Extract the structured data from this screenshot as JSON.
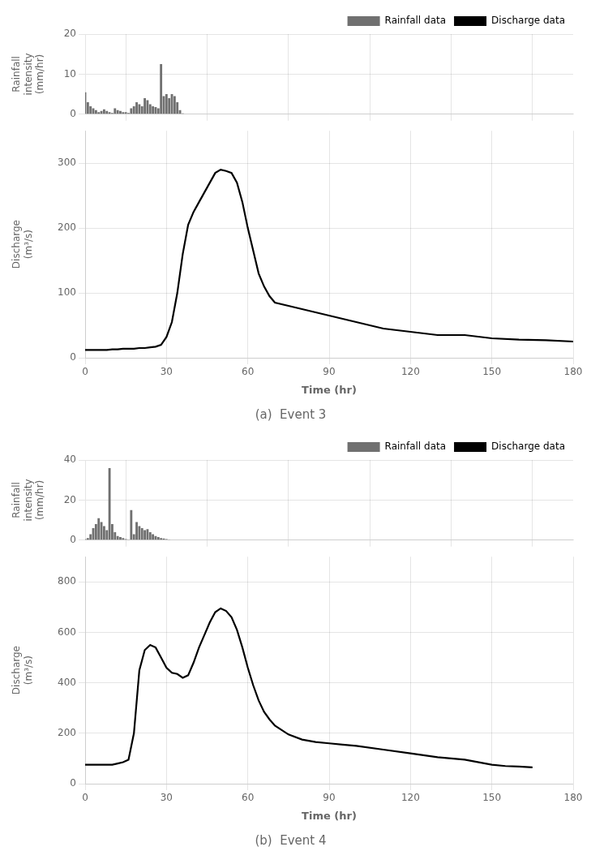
{
  "chart_data": [
    {
      "type": "line",
      "title": "(a)  Event 3",
      "xlabel": "Time (hr)",
      "ylabel": "Discharge\n(m³/s)",
      "y2label": "Rainfall\nintensity\n(mm/hr)",
      "xlim": [
        0,
        180
      ],
      "xticks": [
        0,
        30,
        60,
        90,
        120,
        150,
        180
      ],
      "ylim": [
        0,
        350
      ],
      "yticks": [
        0,
        100,
        200,
        300
      ],
      "y2lim": [
        0,
        20
      ],
      "y2ticks": [
        0,
        10,
        20
      ],
      "grid": true,
      "legend": "upper right",
      "series": [
        {
          "name": "Rainfall data",
          "type": "bar",
          "color": "#707070",
          "axis": "y2",
          "x": [
            0,
            1,
            2,
            3,
            4,
            5,
            6,
            7,
            8,
            9,
            10,
            11,
            12,
            13,
            14,
            15,
            16,
            17,
            18,
            19,
            20,
            21,
            22,
            23,
            24,
            25,
            26,
            27,
            28,
            29,
            30,
            31,
            32,
            33,
            34,
            35,
            36,
            37,
            38,
            39,
            40,
            41,
            42,
            43,
            44,
            45,
            46,
            47,
            48,
            49,
            50
          ],
          "values": [
            5.5,
            3.0,
            2.0,
            1.5,
            1.0,
            0.5,
            0.8,
            1.2,
            0.8,
            0.5,
            0.3,
            1.5,
            1.0,
            0.8,
            0.5,
            0.5,
            0.3,
            1.5,
            2.0,
            3.0,
            2.5,
            2.0,
            4.0,
            3.5,
            2.5,
            2.0,
            1.8,
            1.5,
            12.5,
            4.5,
            5.0,
            4.0,
            5.0,
            4.5,
            3.0,
            1.0,
            0.2,
            0.0,
            0.0,
            0.0,
            0.0,
            0.0,
            0.0,
            0.0,
            0.0,
            0.0,
            0.0,
            0.0,
            0.0,
            0.0,
            0.0
          ]
        },
        {
          "name": "Discharge data",
          "type": "line",
          "color": "#000000",
          "x": [
            0,
            2,
            4,
            6,
            8,
            10,
            12,
            14,
            16,
            18,
            20,
            22,
            24,
            26,
            28,
            30,
            32,
            34,
            36,
            38,
            40,
            42,
            44,
            46,
            48,
            50,
            52,
            54,
            56,
            58,
            60,
            62,
            64,
            66,
            68,
            70,
            75,
            80,
            85,
            90,
            95,
            100,
            110,
            120,
            130,
            140,
            150,
            160,
            170,
            180
          ],
          "values": [
            12,
            12,
            12,
            12,
            12,
            13,
            13,
            14,
            14,
            14,
            15,
            15,
            16,
            17,
            20,
            32,
            55,
            100,
            160,
            205,
            225,
            240,
            255,
            270,
            285,
            290,
            288,
            285,
            270,
            240,
            200,
            165,
            130,
            110,
            95,
            85,
            80,
            75,
            70,
            65,
            60,
            55,
            45,
            40,
            35,
            35,
            30,
            28,
            27,
            25
          ]
        }
      ]
    },
    {
      "type": "line",
      "title": "(b)  Event 4",
      "xlabel": "Time (hr)",
      "ylabel": "Discharge\n(m³/s)",
      "y2label": "Rainfall\nintensity\n(mm/hr)",
      "xlim": [
        0,
        180
      ],
      "xticks": [
        0,
        30,
        60,
        90,
        120,
        150,
        180
      ],
      "ylim": [
        0,
        900
      ],
      "yticks": [
        0,
        200,
        400,
        600,
        800
      ],
      "y2lim": [
        0,
        40
      ],
      "y2ticks": [
        0,
        20,
        40
      ],
      "grid": true,
      "legend": "upper right",
      "series": [
        {
          "name": "Rainfall data",
          "type": "bar",
          "color": "#707070",
          "axis": "y2",
          "x": [
            0,
            1,
            2,
            3,
            4,
            5,
            6,
            7,
            8,
            9,
            10,
            11,
            12,
            13,
            14,
            15,
            16,
            17,
            18,
            19,
            20,
            21,
            22,
            23,
            24,
            25,
            26,
            27,
            28,
            29,
            30,
            31,
            32,
            33,
            34,
            35,
            36,
            37,
            38,
            39,
            40,
            41,
            42,
            43,
            44,
            45,
            46,
            47,
            48,
            49,
            50
          ],
          "values": [
            0.5,
            1.0,
            3.0,
            6.0,
            8.0,
            11.0,
            9.0,
            7.0,
            5.0,
            36.0,
            8.0,
            4.0,
            2.0,
            1.5,
            1.0,
            0.5,
            0.3,
            15.0,
            3.0,
            9.0,
            7.0,
            6.0,
            5.0,
            5.5,
            4.0,
            3.0,
            2.0,
            1.5,
            1.0,
            0.8,
            0.5,
            0.3,
            0.0,
            0.0,
            0.0,
            0.0,
            0.0,
            0.0,
            0.0,
            0.0,
            0.0,
            0.0,
            0.0,
            0.0,
            0.0,
            0.0,
            0.0,
            0.0,
            0.0,
            0.0,
            0.0
          ]
        },
        {
          "name": "Discharge data",
          "type": "line",
          "color": "#000000",
          "x": [
            0,
            2,
            4,
            6,
            8,
            10,
            12,
            14,
            16,
            18,
            20,
            22,
            24,
            26,
            28,
            30,
            32,
            34,
            36,
            38,
            40,
            42,
            44,
            46,
            48,
            50,
            52,
            54,
            56,
            58,
            60,
            62,
            64,
            66,
            68,
            70,
            75,
            80,
            85,
            90,
            95,
            100,
            110,
            120,
            130,
            140,
            150,
            155,
            160,
            165
          ],
          "values": [
            75,
            75,
            75,
            75,
            75,
            75,
            80,
            85,
            95,
            200,
            450,
            530,
            550,
            540,
            500,
            460,
            440,
            435,
            420,
            430,
            480,
            540,
            590,
            640,
            680,
            695,
            685,
            660,
            610,
            540,
            460,
            390,
            330,
            285,
            255,
            230,
            195,
            175,
            165,
            160,
            155,
            150,
            135,
            120,
            105,
            95,
            75,
            70,
            68,
            65
          ]
        }
      ]
    }
  ]
}
